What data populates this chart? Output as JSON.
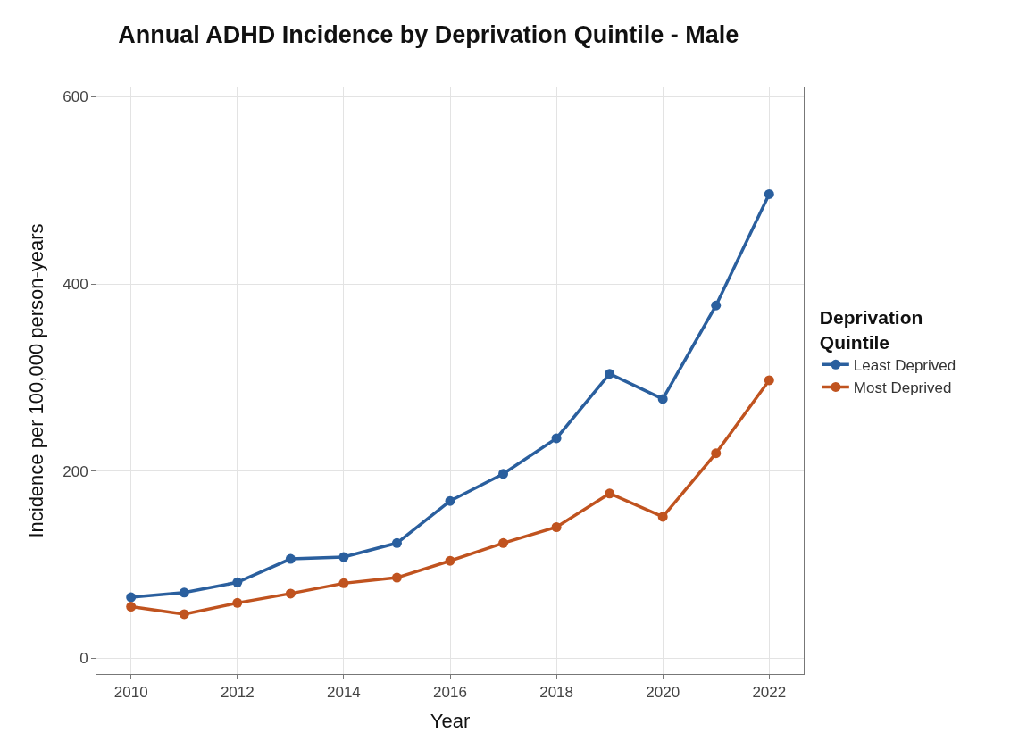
{
  "chart_data": {
    "type": "line",
    "title": "Annual ADHD Incidence by Deprivation Quintile - Male",
    "xlabel": "Year",
    "ylabel": "Incidence per 100,000 person-years",
    "legend_title": "Deprivation Quintile",
    "x": [
      2010,
      2011,
      2012,
      2013,
      2014,
      2015,
      2016,
      2017,
      2018,
      2019,
      2020,
      2021,
      2022
    ],
    "series": [
      {
        "name": "Least Deprived",
        "color": "#2a5f9e",
        "values": [
          65,
          70,
          81,
          106,
          108,
          123,
          168,
          197,
          235,
          304,
          277,
          377,
          496
        ]
      },
      {
        "name": "Most Deprived",
        "color": "#c0531f",
        "values": [
          55,
          47,
          59,
          69,
          80,
          86,
          104,
          123,
          140,
          176,
          151,
          219,
          297
        ]
      }
    ],
    "xlim": [
      2009.35,
      2022.65
    ],
    "xticks": [
      2010,
      2012,
      2014,
      2016,
      2018,
      2020,
      2022
    ],
    "ylim": [
      -17,
      610
    ],
    "yticks": [
      0,
      200,
      400,
      600
    ],
    "grid": true,
    "legend": "right",
    "marker": "circle",
    "line_style": "solid"
  }
}
